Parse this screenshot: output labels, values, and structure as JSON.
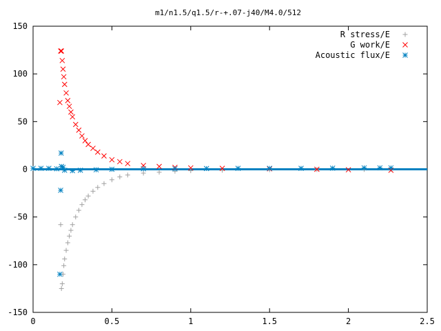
{
  "chart_data": {
    "type": "scatter",
    "title": "m1/n1.5/q1.5/r-+.07-j40/M4.0/512",
    "xlabel": "",
    "ylabel": "",
    "xlim": [
      0,
      2.5
    ],
    "ylim": [
      -150,
      150
    ],
    "x_ticks": [
      "0",
      "0.5",
      "1",
      "1.5",
      "2",
      "2.5"
    ],
    "y_ticks": [
      "150",
      "100",
      "50",
      "0",
      "-50",
      "-100",
      "-150"
    ],
    "grid": false,
    "legend_position": "top-right",
    "series": [
      {
        "name": "R stress/E",
        "marker": "plus",
        "color": "#a0a0a0",
        "points": [
          [
            0.175,
            -58
          ],
          [
            0.18,
            -125
          ],
          [
            0.185,
            -120
          ],
          [
            0.19,
            -110
          ],
          [
            0.195,
            -101
          ],
          [
            0.2,
            -94
          ],
          [
            0.21,
            -85
          ],
          [
            0.22,
            -77
          ],
          [
            0.23,
            -70
          ],
          [
            0.24,
            -64
          ],
          [
            0.25,
            -58
          ],
          [
            0.27,
            -50
          ],
          [
            0.29,
            -43
          ],
          [
            0.31,
            -37
          ],
          [
            0.33,
            -32
          ],
          [
            0.35,
            -28
          ],
          [
            0.38,
            -23
          ],
          [
            0.41,
            -19
          ],
          [
            0.45,
            -15
          ],
          [
            0.5,
            -11
          ],
          [
            0.55,
            -8
          ],
          [
            0.6,
            -6
          ],
          [
            0.7,
            -4
          ],
          [
            0.8,
            -3
          ],
          [
            0.9,
            -2
          ],
          [
            1.0,
            -1.5
          ],
          [
            1.2,
            -1
          ],
          [
            1.5,
            -0.5
          ],
          [
            1.8,
            -0.3
          ],
          [
            2.1,
            -0.2
          ],
          [
            2.27,
            0
          ]
        ]
      },
      {
        "name": "G work/E",
        "marker": "cross",
        "color": "#ff0000",
        "points": [
          [
            0.17,
            70
          ],
          [
            0.175,
            124
          ],
          [
            0.18,
            124
          ],
          [
            0.185,
            114
          ],
          [
            0.19,
            105
          ],
          [
            0.195,
            97
          ],
          [
            0.2,
            89
          ],
          [
            0.21,
            80
          ],
          [
            0.22,
            72
          ],
          [
            0.23,
            66
          ],
          [
            0.24,
            60
          ],
          [
            0.25,
            55
          ],
          [
            0.27,
            47
          ],
          [
            0.29,
            41
          ],
          [
            0.31,
            35
          ],
          [
            0.33,
            30
          ],
          [
            0.35,
            26
          ],
          [
            0.38,
            22
          ],
          [
            0.41,
            18
          ],
          [
            0.45,
            14
          ],
          [
            0.5,
            10
          ],
          [
            0.55,
            8
          ],
          [
            0.6,
            6
          ],
          [
            0.7,
            4
          ],
          [
            0.8,
            3
          ],
          [
            0.9,
            2
          ],
          [
            1.0,
            1.5
          ],
          [
            1.2,
            1
          ],
          [
            1.5,
            0.5
          ],
          [
            1.8,
            0
          ],
          [
            2.0,
            -0.5
          ],
          [
            2.27,
            -1
          ]
        ]
      },
      {
        "name": "Acoustic flux/E",
        "marker": "asterisk",
        "color": "#0080c0",
        "points": [
          [
            0.0,
            1
          ],
          [
            0.05,
            1
          ],
          [
            0.1,
            1
          ],
          [
            0.15,
            0.5
          ],
          [
            0.17,
            -110
          ],
          [
            0.175,
            -22
          ],
          [
            0.178,
            17
          ],
          [
            0.18,
            3
          ],
          [
            0.19,
            2
          ],
          [
            0.2,
            -1
          ],
          [
            0.25,
            -1.5
          ],
          [
            0.3,
            -1
          ],
          [
            0.4,
            -0.5
          ],
          [
            0.5,
            0
          ],
          [
            0.7,
            0.5
          ],
          [
            0.9,
            0.5
          ],
          [
            1.1,
            0.8
          ],
          [
            1.3,
            1
          ],
          [
            1.5,
            1
          ],
          [
            1.7,
            1
          ],
          [
            1.9,
            1.2
          ],
          [
            2.1,
            1.5
          ],
          [
            2.2,
            1.5
          ],
          [
            2.27,
            1.5
          ]
        ]
      }
    ]
  }
}
